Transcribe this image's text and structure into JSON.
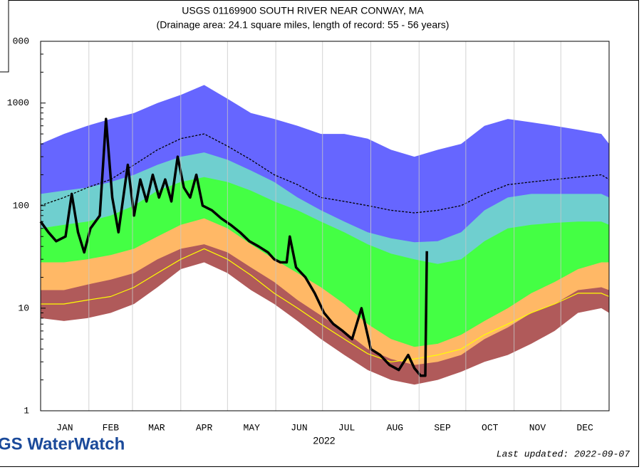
{
  "chart_data": {
    "type": "line",
    "title": "USGS 01169900 SOUTH RIVER NEAR CONWAY, MA",
    "subtitle": "(Drainage area: 24.1 square miles, length of record: 55 - 56 years)",
    "xlabel": "2022",
    "brand": "GS WaterWatch",
    "updated": "Last updated: 2022-09-07",
    "yscale": "log",
    "ylim": [
      1,
      4000
    ],
    "yticks": [
      1,
      10,
      100,
      1000,
      {
        "value": 4000,
        "label": "000"
      }
    ],
    "xlim": [
      0,
      365
    ],
    "xticks": [
      0,
      31,
      59,
      90,
      120,
      151,
      181,
      212,
      243,
      273,
      304,
      334,
      365
    ],
    "categories": [
      "JAN",
      "FEB",
      "MAR",
      "APR",
      "MAY",
      "JUN",
      "JUL",
      "AUG",
      "SEP",
      "OCT",
      "NOV",
      "DEC"
    ],
    "grid": true,
    "x": [
      0,
      15,
      30,
      45,
      60,
      75,
      90,
      105,
      120,
      135,
      150,
      165,
      180,
      195,
      210,
      225,
      240,
      255,
      270,
      285,
      300,
      315,
      330,
      345,
      360,
      365
    ],
    "series": [
      {
        "kind": "area",
        "color": "#6666ff",
        "values": [
          400,
          500,
          600,
          700,
          800,
          1000,
          1200,
          1500,
          1100,
          800,
          700,
          600,
          500,
          500,
          450,
          350,
          300,
          350,
          400,
          600,
          700,
          650,
          600,
          550,
          500,
          400
        ]
      },
      {
        "kind": "area",
        "color": "#6fcfcf",
        "values": [
          130,
          140,
          150,
          170,
          200,
          250,
          300,
          330,
          280,
          220,
          170,
          120,
          90,
          70,
          55,
          48,
          44,
          45,
          55,
          90,
          120,
          130,
          130,
          130,
          130,
          120
        ]
      },
      {
        "kind": "area",
        "color": "#44ff44",
        "values": [
          60,
          65,
          70,
          80,
          100,
          140,
          170,
          190,
          170,
          140,
          110,
          90,
          70,
          55,
          42,
          34,
          30,
          27,
          30,
          45,
          60,
          65,
          68,
          70,
          70,
          65
        ]
      },
      {
        "kind": "area",
        "color": "#ffb866",
        "values": [
          28,
          28,
          30,
          33,
          38,
          50,
          65,
          75,
          60,
          42,
          30,
          22,
          16,
          11,
          7,
          5,
          4.2,
          4.5,
          5.5,
          7.5,
          10,
          14,
          18,
          24,
          28,
          28
        ]
      },
      {
        "kind": "area",
        "color": "#b05a5a",
        "values": [
          15,
          15,
          17,
          19,
          22,
          30,
          38,
          42,
          35,
          25,
          18,
          12,
          8.5,
          6,
          4,
          3.2,
          2.8,
          3,
          3.5,
          5,
          6.5,
          9,
          11,
          15,
          16,
          15
        ]
      },
      {
        "kind": "area",
        "color": "#ffffff",
        "values": [
          8,
          7.5,
          8,
          9,
          11,
          16,
          24,
          28,
          22,
          15,
          11,
          7.5,
          5,
          3.5,
          2.5,
          2,
          1.8,
          2,
          2.4,
          3,
          3.5,
          4.5,
          6,
          9,
          10,
          9
        ]
      },
      {
        "kind": "line",
        "color": "#ffff00",
        "values": [
          11,
          11,
          12,
          13,
          16,
          22,
          30,
          38,
          30,
          21,
          14,
          10,
          7,
          5,
          3.6,
          3,
          3.2,
          3.5,
          4,
          5.5,
          7,
          9,
          11,
          14,
          14,
          13
        ]
      },
      {
        "kind": "dashed",
        "color": "#000000",
        "values": [
          100,
          120,
          150,
          180,
          250,
          350,
          450,
          500,
          380,
          280,
          200,
          160,
          120,
          110,
          100,
          90,
          85,
          90,
          100,
          130,
          160,
          170,
          180,
          190,
          200,
          180
        ]
      },
      {
        "kind": "bold",
        "color": "#000000",
        "x": [
          0,
          5,
          10,
          16,
          20,
          24,
          28,
          32,
          38,
          42,
          46,
          50,
          56,
          60,
          64,
          68,
          72,
          76,
          80,
          84,
          88,
          92,
          96,
          100,
          104,
          110,
          116,
          122,
          128,
          134,
          140,
          146,
          150,
          154,
          158,
          160,
          164,
          170,
          176,
          182,
          188,
          194,
          200,
          206,
          212,
          218,
          224,
          230,
          236,
          240,
          244,
          247,
          248
        ],
        "values": [
          70,
          55,
          45,
          50,
          130,
          55,
          35,
          60,
          80,
          700,
          120,
          55,
          250,
          80,
          180,
          110,
          200,
          120,
          180,
          110,
          300,
          150,
          120,
          200,
          100,
          90,
          75,
          65,
          55,
          45,
          40,
          35,
          30,
          28,
          28,
          50,
          25,
          20,
          14,
          9,
          7,
          6,
          5,
          10,
          4,
          3.5,
          2.8,
          2.5,
          3.5,
          2.6,
          2.2,
          2.2,
          36
        ]
      }
    ]
  }
}
